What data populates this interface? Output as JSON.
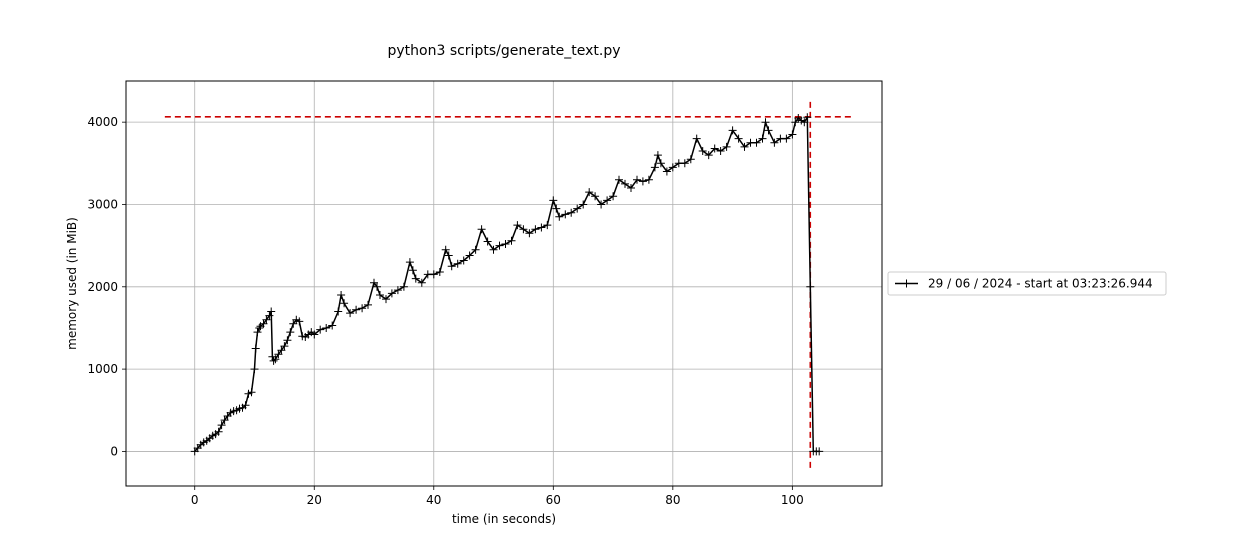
{
  "chart_data": {
    "type": "line",
    "title": "python3 scripts/generate_text.py",
    "xlabel": "time (in seconds)",
    "ylabel": "memory used (in MiB)",
    "xlim": [
      -11.5,
      115
    ],
    "ylim": [
      -420,
      4500
    ],
    "x_ticks": [
      0,
      20,
      40,
      60,
      80,
      100
    ],
    "y_ticks": [
      0,
      1000,
      2000,
      3000,
      4000
    ],
    "grid": true,
    "legend_position": "right",
    "series": [
      {
        "name": "29 / 06 / 2024 - start at 03:23:26.944",
        "color": "#000000",
        "marker": "plus",
        "x": [
          0,
          0.5,
          1,
          1.5,
          2,
          2.5,
          3,
          3.5,
          4,
          4.5,
          5,
          5.5,
          6,
          6.5,
          7,
          7.5,
          8,
          8.5,
          9,
          9.5,
          10,
          10.2,
          10.5,
          10.8,
          11,
          11.5,
          12,
          12.5,
          12.8,
          13,
          13.2,
          13.5,
          14,
          14.5,
          15,
          15.5,
          16,
          16.5,
          17,
          17.5,
          18,
          18.5,
          19,
          19.5,
          20,
          21,
          22,
          23,
          24,
          24.5,
          25,
          26,
          27,
          28,
          29,
          30,
          30.5,
          31,
          32,
          33,
          34,
          35,
          36,
          36.5,
          37,
          38,
          39,
          40,
          41,
          42,
          42.5,
          43,
          44,
          45,
          46,
          47,
          48,
          49,
          50,
          51,
          52,
          53,
          54,
          55,
          56,
          57,
          58,
          59,
          60,
          60.5,
          61,
          62,
          63,
          64,
          65,
          66,
          67,
          68,
          69,
          70,
          71,
          72,
          73,
          74,
          75,
          76,
          77,
          77.5,
          78,
          79,
          80,
          81,
          82,
          83,
          84,
          85,
          86,
          87,
          88,
          89,
          90,
          91,
          92,
          93,
          94,
          95,
          95.5,
          96,
          97,
          98,
          99,
          100,
          100.5,
          101,
          101.5,
          102,
          102.5,
          103,
          103.5,
          104,
          104.5
        ],
        "y": [
          0,
          40,
          80,
          110,
          130,
          160,
          190,
          210,
          240,
          320,
          380,
          430,
          470,
          490,
          500,
          520,
          530,
          560,
          700,
          720,
          1000,
          1250,
          1450,
          1500,
          1520,
          1550,
          1600,
          1650,
          1700,
          1150,
          1100,
          1120,
          1180,
          1230,
          1280,
          1350,
          1450,
          1550,
          1600,
          1580,
          1400,
          1390,
          1420,
          1450,
          1420,
          1480,
          1500,
          1530,
          1700,
          1900,
          1800,
          1680,
          1720,
          1740,
          1780,
          2050,
          2000,
          1900,
          1850,
          1920,
          1960,
          2000,
          2300,
          2200,
          2100,
          2050,
          2150,
          2150,
          2180,
          2450,
          2380,
          2250,
          2280,
          2320,
          2380,
          2450,
          2700,
          2550,
          2450,
          2500,
          2520,
          2560,
          2750,
          2700,
          2650,
          2700,
          2720,
          2750,
          3050,
          2950,
          2850,
          2880,
          2900,
          2950,
          3000,
          3150,
          3100,
          3000,
          3050,
          3100,
          3300,
          3250,
          3200,
          3300,
          3280,
          3300,
          3450,
          3600,
          3500,
          3400,
          3450,
          3500,
          3500,
          3550,
          3800,
          3650,
          3600,
          3680,
          3650,
          3700,
          3900,
          3800,
          3700,
          3750,
          3750,
          3800,
          4000,
          3900,
          3750,
          3800,
          3800,
          3850,
          4000,
          4050,
          4020,
          4000,
          4060,
          2000,
          0,
          0,
          0
        ]
      }
    ],
    "annotations": {
      "max_hline_y": 4065,
      "max_hline_x": [
        -5,
        110
      ],
      "max_vline_x": 103,
      "max_vline_y": [
        -200,
        4270
      ],
      "line_color": "#cc0000"
    }
  }
}
